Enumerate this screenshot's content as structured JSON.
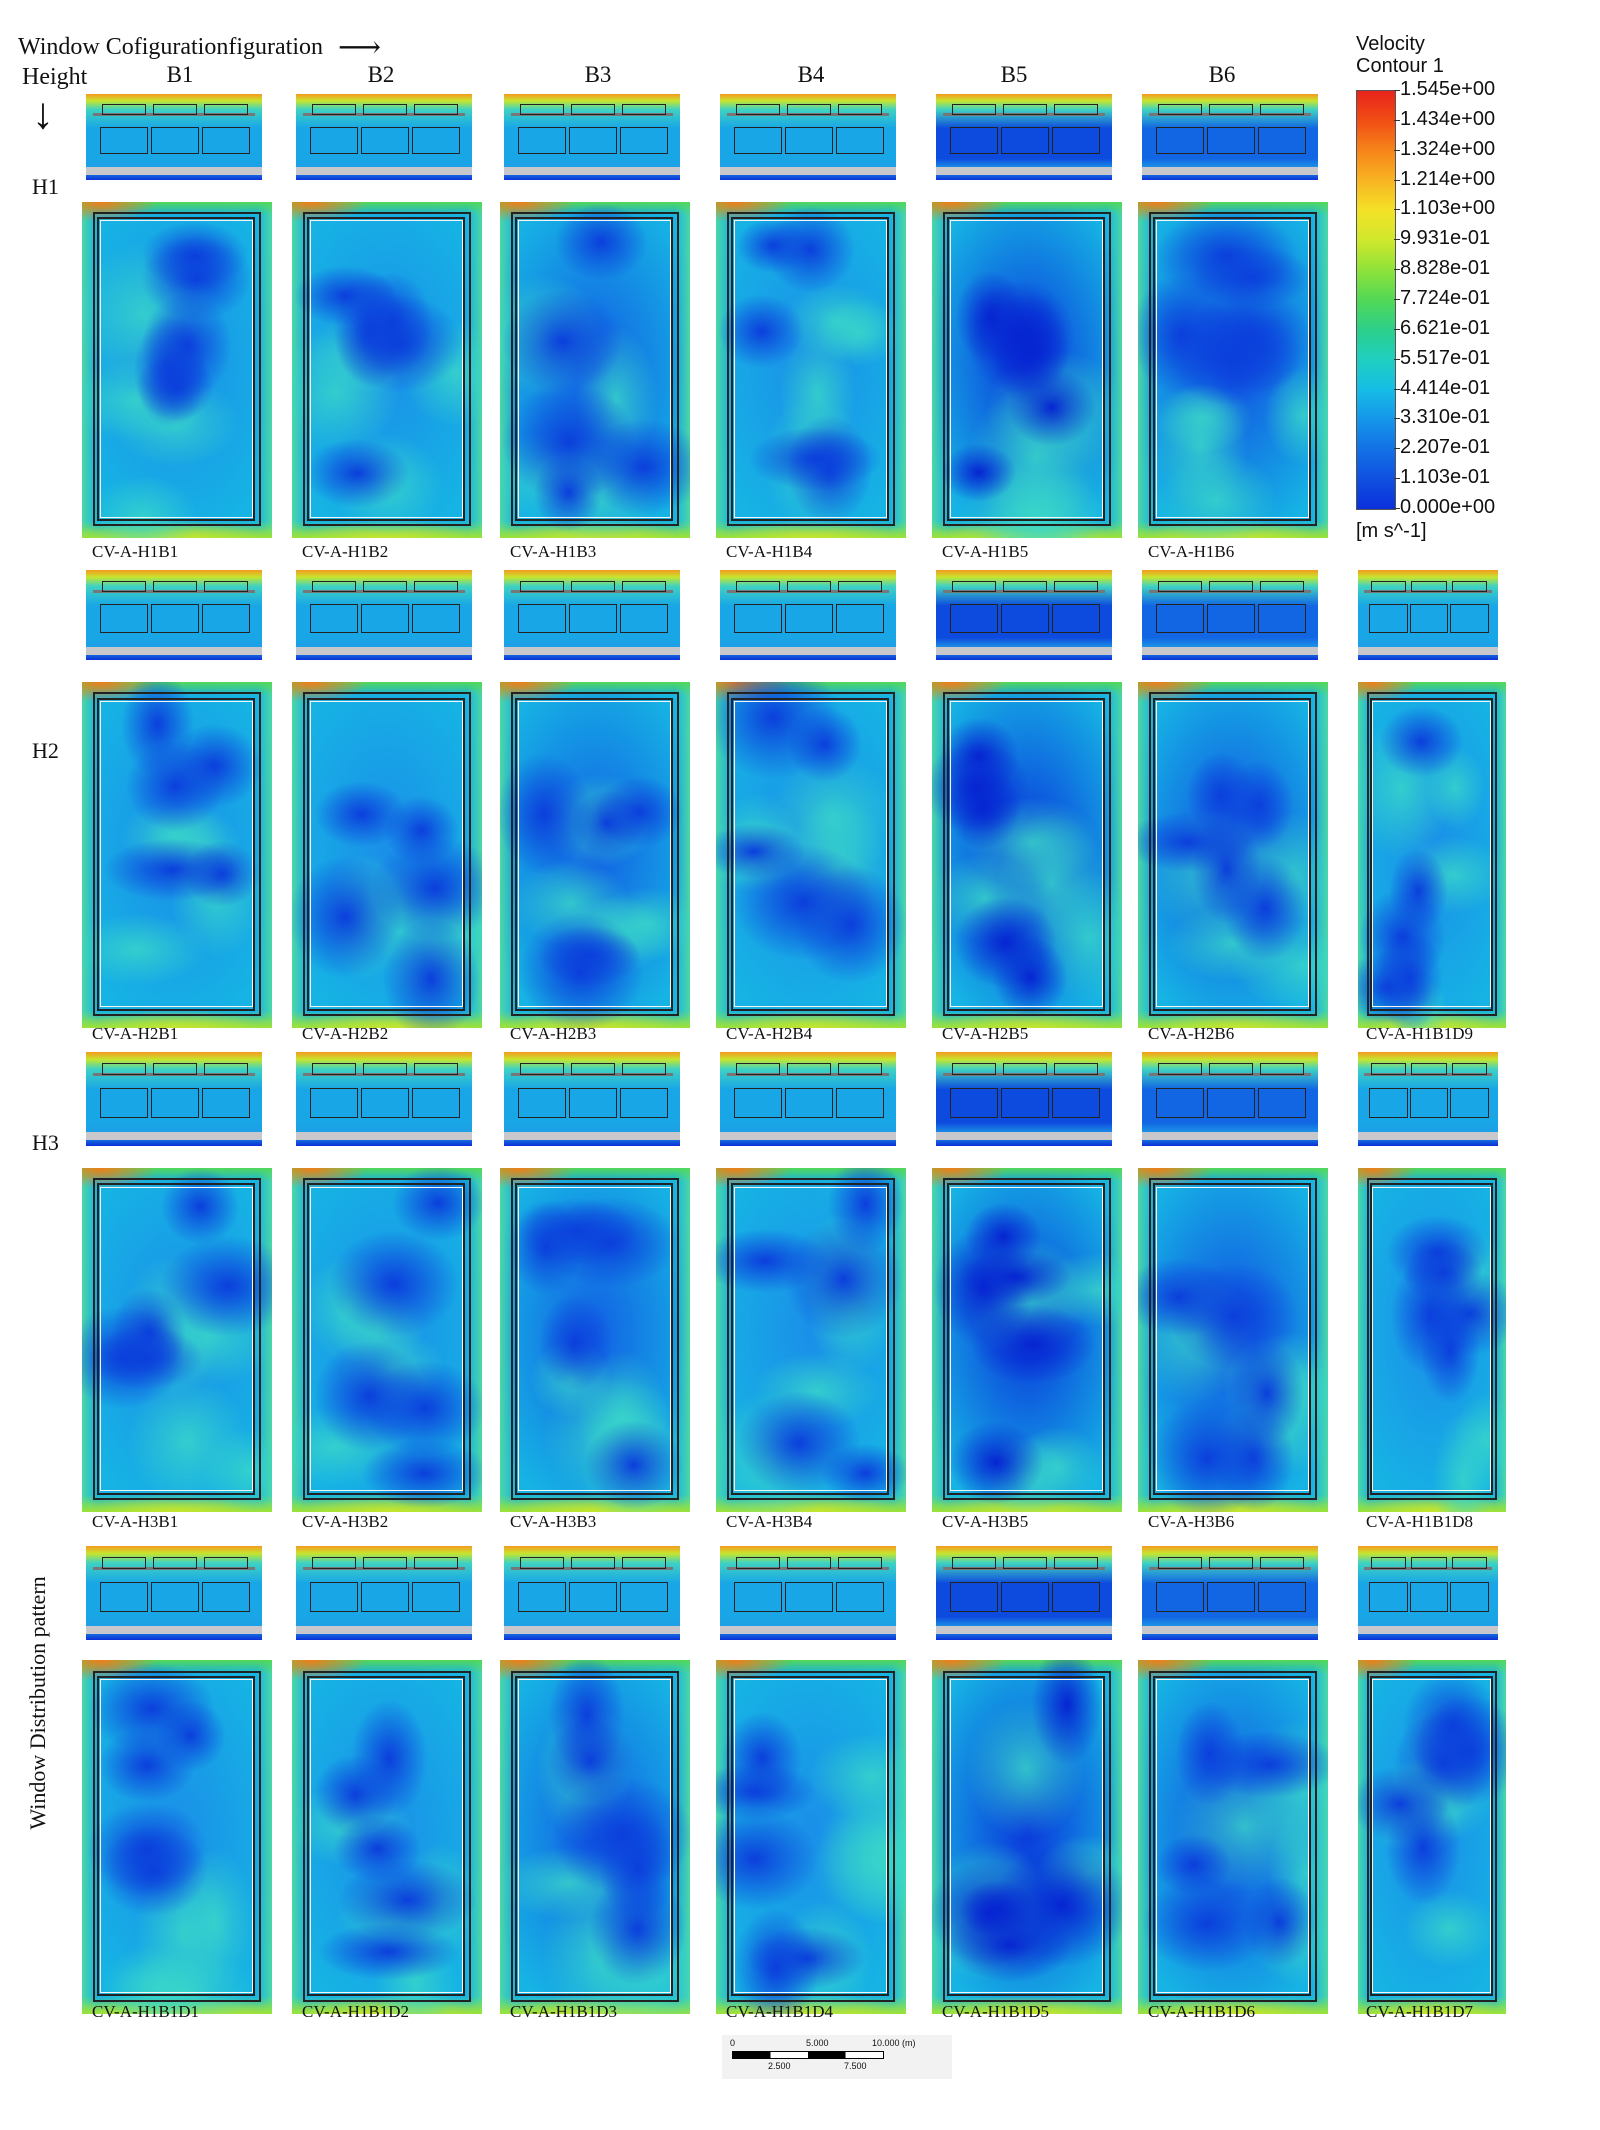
{
  "header": {
    "window_config_label": "Window Cofigurationfiguration",
    "height_label": "Height",
    "arrow_right": "⟶",
    "arrow_down": "↓"
  },
  "columns": [
    "B1",
    "B2",
    "B3",
    "B4",
    "B5",
    "B6"
  ],
  "row_labels": {
    "h1": "H1",
    "h2": "H2",
    "h3": "H3",
    "wdp": "Window Distribution pattern"
  },
  "captions": {
    "row1": [
      "CV-A-H1B1",
      "CV-A-H1B2",
      "CV-A-H1B3",
      "CV-A-H1B4",
      "CV-A-H1B5",
      "CV-A-H1B6"
    ],
    "row2": [
      "CV-A-H2B1",
      "CV-A-H2B2",
      "CV-A-H2B3",
      "CV-A-H2B4",
      "CV-A-H2B5",
      "CV-A-H2B6",
      "CV-A-H1B1D9"
    ],
    "row3": [
      "CV-A-H3B1",
      "CV-A-H3B2",
      "CV-A-H3B3",
      "CV-A-H3B4",
      "CV-A-H3B5",
      "CV-A-H3B6",
      "CV-A-H1B1D8"
    ],
    "row4": [
      "CV-A-H1B1D1",
      "CV-A-H1B1D2",
      "CV-A-H1B1D3",
      "CV-A-H1B1D4",
      "CV-A-H1B1D5",
      "CV-A-H1B1D6",
      "CV-A-H1B1D7"
    ]
  },
  "legend": {
    "title": "Velocity",
    "subtitle": "Contour 1",
    "ticks": [
      "1.545e+00",
      "1.434e+00",
      "1.324e+00",
      "1.214e+00",
      "1.103e+00",
      "9.931e-01",
      "8.828e-01",
      "7.724e-01",
      "6.621e-01",
      "5.517e-01",
      "4.414e-01",
      "3.310e-01",
      "2.207e-01",
      "1.103e-01",
      "0.000e+00"
    ],
    "unit": "[m s^-1]",
    "colors": [
      "#e8231c",
      "#f04e14",
      "#f6851a",
      "#f8b422",
      "#f4e227",
      "#cfe82c",
      "#8fe23a",
      "#52d856",
      "#2ccf8a",
      "#1fcfc0",
      "#16bde6",
      "#1596ea",
      "#1371e6",
      "#1050e0",
      "#0b2fdc"
    ]
  },
  "scale_bar": {
    "top_labels": [
      "0",
      "5.000",
      "10.000 (m)"
    ],
    "bottom_labels": [
      "2.500",
      "7.500"
    ]
  }
}
